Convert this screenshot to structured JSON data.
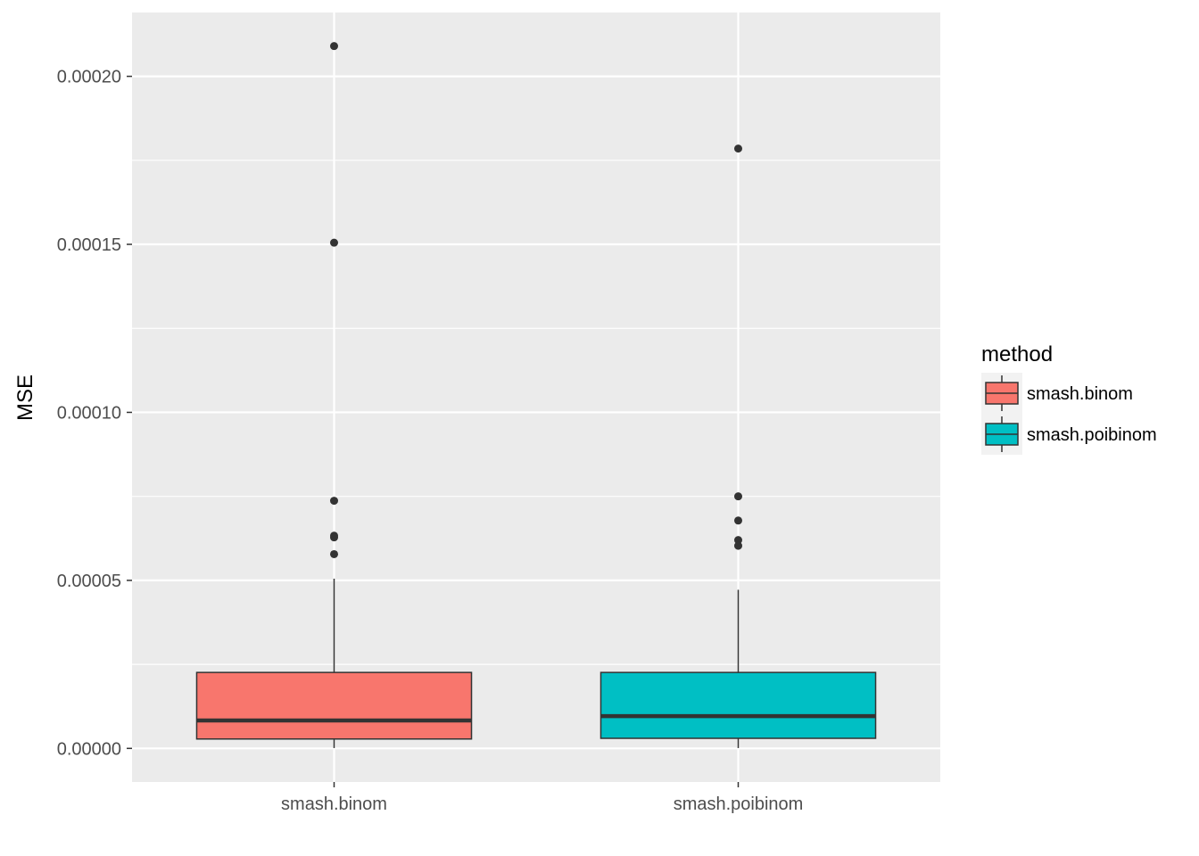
{
  "chart_data": {
    "type": "boxplot",
    "ylabel": "MSE",
    "xlabel": "",
    "ylim": [
      -1e-05,
      0.000219
    ],
    "y_ticks": [
      0.0,
      5e-05,
      0.0001,
      0.00015,
      0.0002
    ],
    "y_tick_labels": [
      "0.00000",
      "0.00005",
      "0.00010",
      "0.00015",
      "0.00020"
    ],
    "y_minor_ticks": [
      2.5e-05,
      7.5e-05,
      0.000125,
      0.000175
    ],
    "categories": [
      "smash.binom",
      "smash.poibinom"
    ],
    "boxes": [
      {
        "category": "smash.binom",
        "color": "#F8766D",
        "whisker_low": 1e-07,
        "q1": 2.8e-06,
        "median": 8.3e-06,
        "q3": 2.26e-05,
        "whisker_high": 5.05e-05,
        "outliers": [
          0.000209,
          0.0001505,
          7.37e-05,
          6.33e-05,
          6.28e-05,
          5.78e-05
        ]
      },
      {
        "category": "smash.poibinom",
        "color": "#00BFC4",
        "whisker_low": 1e-07,
        "q1": 3e-06,
        "median": 9.6e-06,
        "q3": 2.26e-05,
        "whisker_high": 4.72e-05,
        "outliers": [
          0.0001785,
          7.5e-05,
          6.78e-05,
          6.2e-05,
          6.03e-05
        ]
      }
    ],
    "legend": {
      "title": "method",
      "position": "right",
      "entries": [
        {
          "label": "smash.binom",
          "color": "#F8766D"
        },
        {
          "label": "smash.poibinom",
          "color": "#00BFC4"
        }
      ]
    },
    "grid": true,
    "panel_background": "#EBEBEB",
    "grid_color": "#FFFFFF",
    "box_line_color": "#333333",
    "outlier_color": "#333333"
  }
}
